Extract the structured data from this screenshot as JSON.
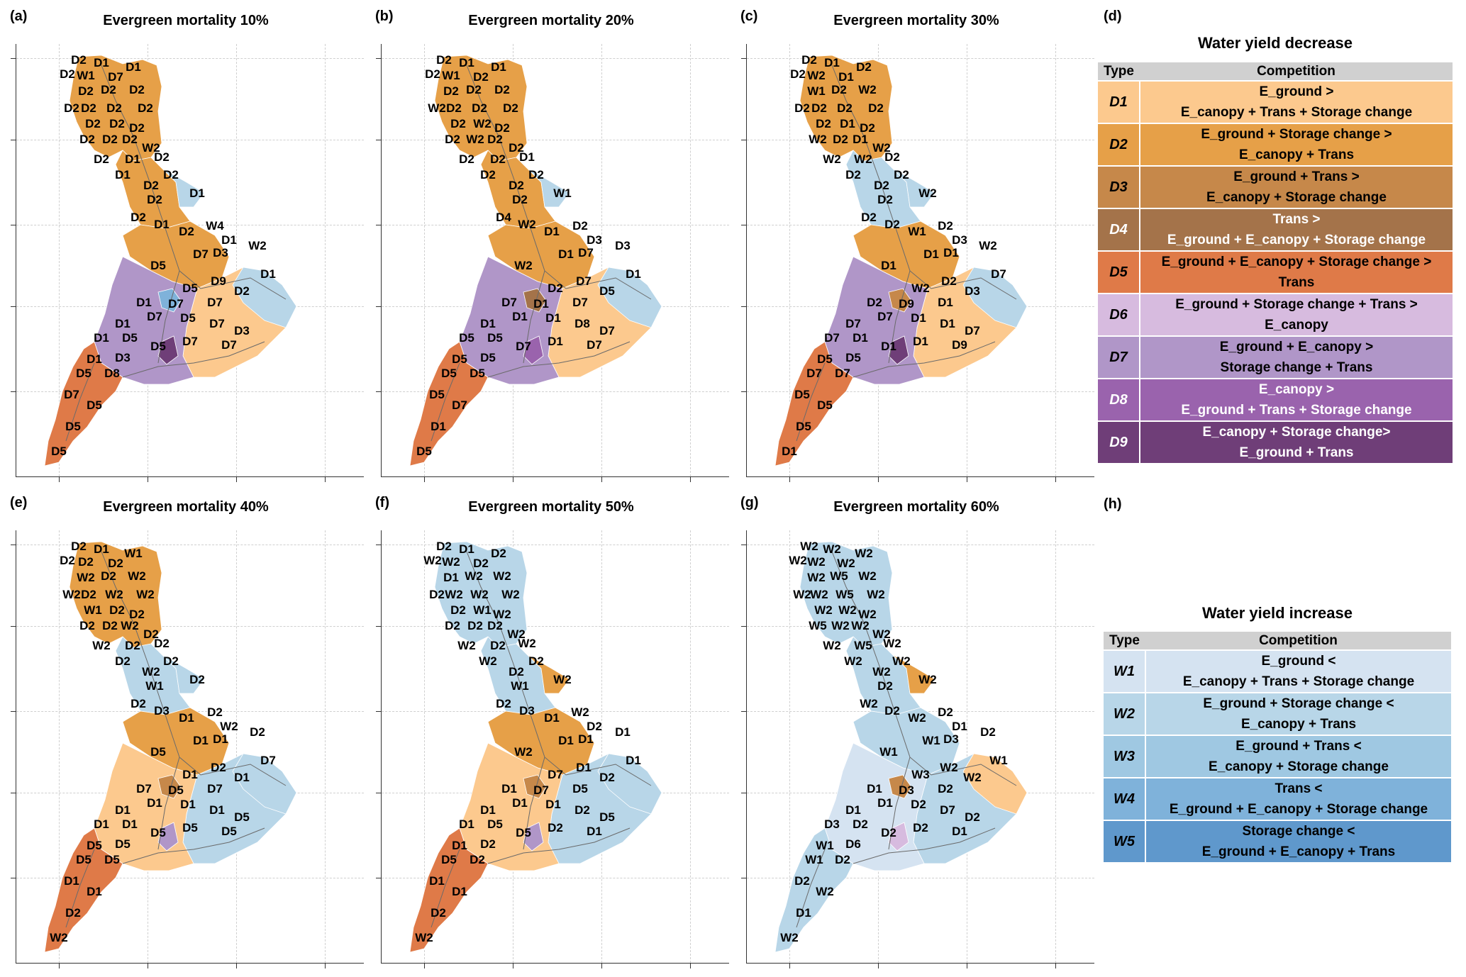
{
  "colors": {
    "D1": "#fcc98e",
    "D2": "#e6a048",
    "D3": "#c6884a",
    "D4": "#a4734a",
    "D5": "#df7a48",
    "D6": "#d7bbdf",
    "D7": "#b096c8",
    "D8": "#9a63ad",
    "D9": "#6f3e78",
    "W1": "#d5e3f1",
    "W2": "#b8d6e8",
    "W3": "#9fc8e2",
    "W4": "#7fb2da",
    "W5": "#5f98cc"
  },
  "panels": [
    {
      "letter": "(a)",
      "title": "Evergreen mortality 10%",
      "regions": {
        "north": "D2",
        "upper": "D2",
        "middle": "D2",
        "center": "D7",
        "east": "D1",
        "southwest": "D5",
        "pocket_ne": "W2",
        "pocket_e": "W2",
        "pocket_c": "W4",
        "accent": "D9"
      },
      "labels": [
        "D2",
        "D1",
        "W1",
        "D7",
        "D1",
        "D2",
        "D2",
        "D2",
        "D2",
        "D2",
        "D2",
        "D2",
        "D2",
        "D2",
        "D2",
        "D2",
        "D2",
        "D2",
        "D2",
        "W2",
        "D2",
        "D1",
        "D2",
        "D2",
        "D1",
        "D2",
        "D2",
        "D1",
        "D2",
        "D1",
        "D2",
        "W4",
        "D1",
        "D3",
        "D7",
        "W2",
        "D5",
        "D9",
        "D1",
        "D2",
        "D5",
        "D7",
        "D7",
        "D1",
        "D7",
        "D5",
        "D7",
        "D3",
        "D1",
        "D1",
        "D5",
        "D5",
        "D7",
        "D7",
        "D1",
        "D3",
        "D5",
        "D8",
        "D7",
        "D5",
        "D5",
        "D5"
      ]
    },
    {
      "letter": "(b)",
      "title": "Evergreen mortality 20%",
      "regions": {
        "north": "D2",
        "upper": "D2",
        "middle": "D2",
        "center": "D7",
        "east": "D1",
        "southwest": "D5",
        "pocket_ne": "W2",
        "pocket_e": "W2",
        "pocket_c": "D4",
        "accent": "D8"
      },
      "labels": [
        "D2",
        "D1",
        "W1",
        "D2",
        "D1",
        "D2",
        "D2",
        "D2",
        "D2",
        "W2",
        "D2",
        "D2",
        "D2",
        "D2",
        "W2",
        "D2",
        "D2",
        "W2",
        "D2",
        "D2",
        "D2",
        "D2",
        "D1",
        "D2",
        "D2",
        "D2",
        "D2",
        "W1",
        "D4",
        "W2",
        "D1",
        "D2",
        "D3",
        "D7",
        "D1",
        "D3",
        "W2",
        "D7",
        "D1",
        "D5",
        "D2",
        "D7",
        "D1",
        "D7",
        "D1",
        "D1",
        "D8",
        "D7",
        "D1",
        "D5",
        "D5",
        "D7",
        "D1",
        "D7",
        "D5",
        "D5",
        "D5",
        "D5",
        "D5",
        "D7",
        "D1",
        "D5"
      ]
    },
    {
      "letter": "(c)",
      "title": "Evergreen mortality 30%",
      "regions": {
        "north": "D2",
        "upper": "W2",
        "middle": "D2",
        "center": "D7",
        "east": "D1",
        "southwest": "D5",
        "pocket_ne": "W2",
        "pocket_e": "W2",
        "pocket_c": "D3",
        "accent": "D9"
      },
      "labels": [
        "D2",
        "D1",
        "W2",
        "D1",
        "D2",
        "D2",
        "W1",
        "D2",
        "W2",
        "D2",
        "D2",
        "D2",
        "D2",
        "D2",
        "D1",
        "D2",
        "W2",
        "D2",
        "D1",
        "W2",
        "W2",
        "W2",
        "D2",
        "D2",
        "D2",
        "D2",
        "D2",
        "W2",
        "D2",
        "D2",
        "W1",
        "D2",
        "D3",
        "D1",
        "D1",
        "W2",
        "D1",
        "D2",
        "D7",
        "D3",
        "W2",
        "D1",
        "D9",
        "D2",
        "D7",
        "D1",
        "D1",
        "D7",
        "D7",
        "D7",
        "D1",
        "D1",
        "D1",
        "D9",
        "D5",
        "D5",
        "D7",
        "D7",
        "D5",
        "D5",
        "D5",
        "D1"
      ]
    },
    {
      "letter": "(e)",
      "title": "Evergreen mortality 40%",
      "regions": {
        "north": "D2",
        "upper": "W2",
        "middle": "D2",
        "center": "D1",
        "east": "W2",
        "southwest": "D5",
        "pocket_ne": "W2",
        "pocket_e": "W2",
        "pocket_c": "D3",
        "accent": "D7"
      },
      "labels": [
        "D2",
        "D1",
        "D2",
        "D2",
        "W1",
        "D2",
        "W2",
        "D2",
        "W2",
        "W2",
        "D2",
        "W2",
        "W2",
        "W1",
        "D2",
        "D2",
        "D2",
        "D2",
        "W2",
        "D2",
        "W2",
        "D2",
        "D2",
        "D2",
        "D2",
        "W2",
        "W1",
        "D2",
        "D2",
        "D3",
        "D1",
        "D2",
        "W2",
        "D1",
        "D1",
        "D2",
        "D5",
        "D2",
        "D7",
        "D1",
        "D1",
        "D7",
        "D5",
        "D7",
        "D1",
        "D1",
        "D1",
        "D5",
        "D1",
        "D1",
        "D1",
        "D5",
        "D5",
        "D5",
        "D5",
        "D5",
        "D5",
        "D5",
        "D1",
        "D1",
        "D2",
        "W2"
      ]
    },
    {
      "letter": "(f)",
      "title": "Evergreen mortality 50%",
      "regions": {
        "north": "W2",
        "upper": "W2",
        "middle": "D2",
        "center": "D1",
        "east": "W2",
        "southwest": "D5",
        "pocket_ne": "D2",
        "pocket_e": "W2",
        "pocket_c": "D3",
        "accent": "D7"
      },
      "labels": [
        "D2",
        "D1",
        "W2",
        "D2",
        "D2",
        "W2",
        "D1",
        "W2",
        "W2",
        "D2",
        "W2",
        "W2",
        "W2",
        "D2",
        "W1",
        "W2",
        "D2",
        "D2",
        "D2",
        "W2",
        "W2",
        "D2",
        "W2",
        "D2",
        "W2",
        "D2",
        "W1",
        "W2",
        "D2",
        "D3",
        "D1",
        "W2",
        "D2",
        "D1",
        "D1",
        "D1",
        "W2",
        "D1",
        "D1",
        "D2",
        "D7",
        "D5",
        "D7",
        "D1",
        "D1",
        "D1",
        "D2",
        "D5",
        "D1",
        "D1",
        "D5",
        "D5",
        "D2",
        "D1",
        "D1",
        "D2",
        "D5",
        "D2",
        "D1",
        "D1",
        "D2",
        "W2"
      ]
    },
    {
      "letter": "(g)",
      "title": "Evergreen mortality 60%",
      "regions": {
        "north": "W2",
        "upper": "W2",
        "middle": "W2",
        "center": "W1",
        "east": "W2",
        "southwest": "W2",
        "pocket_ne": "D2",
        "pocket_e": "D1",
        "pocket_c": "D3",
        "accent": "D6"
      },
      "labels": [
        "W2",
        "W2",
        "W2",
        "W2",
        "W2",
        "W2",
        "W2",
        "W5",
        "W2",
        "W2",
        "W2",
        "W5",
        "W2",
        "W2",
        "W2",
        "W2",
        "W5",
        "W2",
        "W2",
        "W2",
        "W2",
        "W5",
        "W2",
        "W2",
        "W2",
        "W2",
        "D2",
        "W2",
        "W2",
        "D2",
        "W2",
        "D2",
        "D1",
        "D3",
        "W1",
        "D2",
        "W1",
        "W2",
        "W1",
        "W2",
        "W3",
        "D2",
        "D3",
        "D1",
        "D1",
        "D2",
        "D7",
        "D2",
        "D1",
        "D3",
        "D2",
        "D2",
        "D2",
        "D1",
        "W1",
        "D6",
        "W1",
        "D2",
        "D2",
        "W2",
        "D1",
        "W2"
      ]
    }
  ],
  "legend_decrease": {
    "letter": "(d)",
    "title": "Water yield decrease",
    "header_type": "Type",
    "header_comp": "Competition",
    "rows": [
      {
        "type": "D1",
        "line1": "E_ground >",
        "line2": "E_canopy + Trans + Storage change"
      },
      {
        "type": "D2",
        "line1": "E_ground + Storage change >",
        "line2": "E_canopy + Trans"
      },
      {
        "type": "D3",
        "line1": "E_ground + Trans >",
        "line2": "E_canopy + Storage change"
      },
      {
        "type": "D4",
        "line1": "Trans >",
        "line2": "E_ground + E_canopy + Storage change"
      },
      {
        "type": "D5",
        "line1": "E_ground + E_canopy + Storage change >",
        "line2": "Trans"
      },
      {
        "type": "D6",
        "line1": "E_ground + Storage change + Trans >",
        "line2": "E_canopy"
      },
      {
        "type": "D7",
        "line1": "E_ground + E_canopy >",
        "line2": "Storage change + Trans"
      },
      {
        "type": "D8",
        "line1": "E_canopy >",
        "line2": "E_ground + Trans + Storage change"
      },
      {
        "type": "D9",
        "line1": "E_canopy + Storage change>",
        "line2": "E_ground + Trans"
      }
    ]
  },
  "legend_increase": {
    "letter": "(h)",
    "title": "Water yield increase",
    "header_type": "Type",
    "header_comp": "Competition",
    "rows": [
      {
        "type": "W1",
        "line1": "E_ground <",
        "line2": "E_canopy + Trans + Storage change"
      },
      {
        "type": "W2",
        "line1": "E_ground + Storage change <",
        "line2": "E_canopy + Trans"
      },
      {
        "type": "W3",
        "line1": "E_ground + Trans <",
        "line2": "E_canopy + Storage change"
      },
      {
        "type": "W4",
        "line1": "Trans <",
        "line2": "E_ground + E_canopy + Storage change"
      },
      {
        "type": "W5",
        "line1": "Storage change <",
        "line2": "E_ground + E_canopy + Trans"
      }
    ]
  }
}
